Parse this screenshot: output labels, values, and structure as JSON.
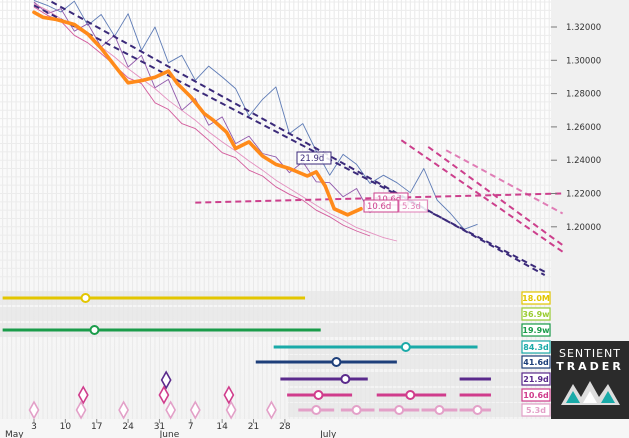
{
  "chart_data": {
    "type": "line",
    "x_tick_labels": [
      "3",
      "10",
      "17",
      "24",
      "31",
      "7",
      "14",
      "21",
      "28"
    ],
    "month_labels": [
      "May",
      "June",
      "July"
    ],
    "y_tick_labels": [
      "1.32000",
      "1.30000",
      "1.28000",
      "1.26000",
      "1.24000",
      "1.22000",
      "1.20000"
    ],
    "ylim": [
      1.1895,
      1.3335
    ],
    "price_series": {
      "color": "#ff8a1a",
      "x": [
        0,
        2,
        5,
        9,
        12,
        15,
        18,
        21,
        24,
        27,
        30,
        32,
        35,
        38,
        40,
        43,
        45,
        48,
        51,
        54,
        57,
        61,
        63,
        65,
        67,
        70,
        73
      ],
      "y": [
        1.3288,
        1.3258,
        1.3245,
        1.3215,
        1.3158,
        1.3072,
        1.2968,
        1.2865,
        1.2878,
        1.2898,
        1.2935,
        1.286,
        1.278,
        1.268,
        1.264,
        1.2568,
        1.247,
        1.251,
        1.2425,
        1.2375,
        1.235,
        1.2305,
        1.233,
        1.2245,
        1.2108,
        1.2072,
        1.2108
      ]
    },
    "envelope_series": [
      {
        "color": "#4466aa",
        "x": [
          0,
          3,
          6,
          9,
          12,
          15,
          18,
          21,
          24,
          27,
          30,
          33,
          36,
          39,
          42,
          45,
          48,
          51,
          54,
          57,
          60,
          63,
          66,
          69,
          72,
          75,
          78,
          81,
          84,
          87,
          90,
          93,
          96,
          99
        ],
        "y": [
          1.336,
          1.333,
          1.329,
          1.3355,
          1.321,
          1.3275,
          1.3145,
          1.328,
          1.306,
          1.32,
          1.2985,
          1.303,
          1.288,
          1.2965,
          1.29,
          1.283,
          1.2665,
          1.2765,
          1.284,
          1.256,
          1.262,
          1.2455,
          1.231,
          1.2435,
          1.2375,
          1.226,
          1.231,
          1.2265,
          1.2205,
          1.235,
          1.216,
          1.208,
          1.1985,
          1.2015
        ]
      },
      {
        "color": "#7f3d9e",
        "x": [
          0,
          3,
          6,
          9,
          12,
          15,
          18,
          21,
          24,
          27,
          30,
          33,
          36,
          39,
          42,
          45,
          48,
          51,
          54,
          57,
          60,
          63,
          66,
          69,
          72,
          75,
          78
        ],
        "y": [
          1.335,
          1.328,
          1.331,
          1.3175,
          1.322,
          1.308,
          1.315,
          1.296,
          1.303,
          1.2835,
          1.2885,
          1.27,
          1.277,
          1.261,
          1.266,
          1.25,
          1.2545,
          1.244,
          1.242,
          1.2325,
          1.239,
          1.227,
          1.2265,
          1.218,
          1.223,
          1.2085,
          1.2165
        ]
      },
      {
        "color": "#cc3f8c",
        "x": [
          0,
          3,
          6,
          9,
          12,
          15,
          18,
          21,
          24,
          27,
          30,
          33,
          36,
          39,
          42,
          45,
          48,
          51,
          54,
          57,
          60,
          63,
          66,
          69,
          72,
          75
        ],
        "y": [
          1.332,
          1.327,
          1.3235,
          1.315,
          1.3105,
          1.304,
          1.297,
          1.2895,
          1.286,
          1.2745,
          1.2705,
          1.262,
          1.259,
          1.252,
          1.2445,
          1.2415,
          1.234,
          1.2305,
          1.224,
          1.2195,
          1.216,
          1.21,
          1.206,
          1.201,
          1.1975,
          1.1945
        ]
      },
      {
        "color": "#e07eb6",
        "x": [
          0,
          3,
          6,
          9,
          12,
          15,
          18,
          21,
          24,
          27,
          30,
          33,
          36,
          39,
          42,
          45,
          48,
          51,
          54,
          57,
          60,
          63,
          66,
          69,
          72,
          75,
          78,
          81
        ],
        "y": [
          1.334,
          1.33,
          1.325,
          1.32,
          1.315,
          1.308,
          1.302,
          1.295,
          1.289,
          1.283,
          1.276,
          1.27,
          1.264,
          1.257,
          1.251,
          1.2455,
          1.2395,
          1.234,
          1.228,
          1.223,
          1.218,
          1.213,
          1.208,
          1.204,
          1.1995,
          1.1965,
          1.1935,
          1.1915
        ]
      }
    ],
    "trend_lines": [
      {
        "color": "#3b2a7a",
        "x": [
          0,
          114
        ],
        "y": [
          1.341,
          1.171
        ]
      },
      {
        "color": "#3b2a7a",
        "x": [
          0,
          114
        ],
        "y": [
          1.333,
          1.173
        ]
      },
      {
        "color": "#cc3f8c",
        "x": [
          82,
          118
        ],
        "y": [
          1.252,
          1.185
        ]
      },
      {
        "color": "#cc3f8c",
        "x": [
          88,
          118
        ],
        "y": [
          1.248,
          1.189
        ]
      },
      {
        "color": "#e07eb6",
        "x": [
          92,
          118
        ],
        "y": [
          1.246,
          1.208
        ]
      },
      {
        "color": "#cc3f8c",
        "x": [
          36,
          118
        ],
        "y": [
          1.2145,
          1.22
        ]
      }
    ],
    "line_tags": [
      {
        "text": "21.9d",
        "color": "#3b2a7a"
      },
      {
        "text": "10.6d",
        "color": "#cc3f8c"
      },
      {
        "text": "10.6d",
        "color": "#cc3f8c"
      },
      {
        "text": "5.3d",
        "color": "#e07eb6"
      }
    ],
    "cycle_bars": [
      {
        "label": "18.0M",
        "color": "#e3c600",
        "center": 18.5,
        "x0": 0,
        "x1": 67.5
      },
      {
        "label": "36.9w",
        "color": "#9acd32",
        "center": null,
        "x0": null,
        "x1": null
      },
      {
        "label": "19.9w",
        "color": "#1a9c4a",
        "center": 20.5,
        "x0": 0,
        "x1": 71
      },
      {
        "label": "84.3d",
        "color": "#1aaaa8",
        "center": 90,
        "x0": 60.5,
        "x1": 106
      },
      {
        "label": "41.6d",
        "color": "#1e3f7a",
        "center": 74.5,
        "x0": 56.5,
        "x1": 88
      },
      {
        "label": "21.9d",
        "color": "#5a2a8c",
        "center": 76.5,
        "x0": 62,
        "x1": 81.5
      },
      {
        "label": "10.6d",
        "color": "#d03c8c",
        "center": 70.5,
        "x0": 63.5,
        "x1": 78
      },
      {
        "label": "5.3d",
        "color": "#e3a0c8",
        "center": 70,
        "x0": 66,
        "x1": 74
      }
    ],
    "cycle_bar_extra": [
      {
        "color": "#5a2a8c",
        "x0": 102,
        "x1": 109
      },
      {
        "color": "#d03c8c",
        "x0": 83.5,
        "x1": 99
      },
      {
        "color": "#d03c8c",
        "x0": 102,
        "x1": 109
      },
      {
        "color": "#e3a0c8",
        "x0": 75.5,
        "x1": 83
      },
      {
        "color": "#e3a0c8",
        "x0": 84,
        "x1": 93
      },
      {
        "color": "#e3a0c8",
        "x0": 93.5,
        "x1": 101.5
      },
      {
        "color": "#e3a0c8",
        "x0": 102,
        "x1": 109
      }
    ],
    "cycle_bar_extra_markers": [
      {
        "color": "#d03c8c",
        "x": 91
      },
      {
        "color": "#e3a0c8",
        "x": 79
      },
      {
        "color": "#e3a0c8",
        "x": 88.5
      },
      {
        "color": "#e3a0c8",
        "x": 97.5
      },
      {
        "color": "#e3a0c8",
        "x": 106
      }
    ],
    "trough_markers": [
      {
        "color": "#5a2a8c",
        "x": 36.5,
        "level": 0
      },
      {
        "color": "#d03c8c",
        "x": 18,
        "level": 1
      },
      {
        "color": "#d03c8c",
        "x": 36,
        "level": 1
      },
      {
        "color": "#d03c8c",
        "x": 50.5,
        "level": 1
      },
      {
        "color": "#e3a0c8",
        "x": 7,
        "level": 2
      },
      {
        "color": "#e3a0c8",
        "x": 17.5,
        "level": 2
      },
      {
        "color": "#e3a0c8",
        "x": 27,
        "level": 2
      },
      {
        "color": "#e3a0c8",
        "x": 37.5,
        "level": 2
      },
      {
        "color": "#e3a0c8",
        "x": 43,
        "level": 2
      },
      {
        "color": "#e3a0c8",
        "x": 51,
        "level": 2
      },
      {
        "color": "#e3a0c8",
        "x": 60,
        "level": 2
      }
    ],
    "grid": true,
    "legend_placement": "right"
  },
  "branding": {
    "line1": "SENTIENT",
    "line2": "TRADER"
  }
}
